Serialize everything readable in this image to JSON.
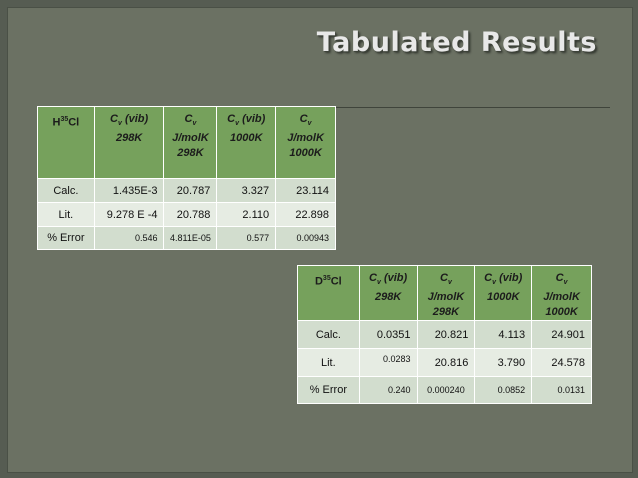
{
  "title": "Tabulated Results",
  "table_hcl": {
    "headers": [
      {
        "main": "H",
        "sup": "35",
        "tail": "Cl"
      },
      {
        "main": "C",
        "sub": "v",
        "l1": " (vib)",
        "l2": "298K",
        "l3": ""
      },
      {
        "main": "C",
        "sub": "v",
        "l1": "",
        "l2": "J/molK",
        "l3": "298K"
      },
      {
        "main": "C",
        "sub": "v",
        "l1": " (vib)",
        "l2": "1000K",
        "l3": ""
      },
      {
        "main": "C",
        "sub": "v",
        "l1": "",
        "l2": "J/molK",
        "l3": "1000K"
      }
    ],
    "rows": [
      {
        "label": "Calc.",
        "c1": "1.435E-3",
        "c2": "20.787",
        "c3": "3.327",
        "c4": "23.114"
      },
      {
        "label": "Lit.",
        "c1": "9.278 E -4",
        "c2": "20.788",
        "c3": "2.110",
        "c4": "22.898"
      },
      {
        "label": "% Error",
        "c1": "0.546",
        "c2": "4.811E-05",
        "c3": "0.577",
        "c4": "0.00943"
      }
    ]
  },
  "table_dcl": {
    "headers": [
      {
        "main": "D",
        "sup": "35",
        "tail": "Cl"
      },
      {
        "main": "C",
        "sub": "v",
        "l1": " (vib)",
        "l2": "298K",
        "l3": ""
      },
      {
        "main": "C",
        "sub": "v",
        "l1": "",
        "l2": "J/molK",
        "l3": "298K"
      },
      {
        "main": "C",
        "sub": "v",
        "l1": " (vib)",
        "l2": "1000K",
        "l3": ""
      },
      {
        "main": "C",
        "sub": "v",
        "l1": "",
        "l2": "J/molK",
        "l3": "1000K"
      }
    ],
    "rows": [
      {
        "label": "Calc.",
        "c1": "0.0351",
        "c2": "20.821",
        "c3": "4.113",
        "c4": "24.901"
      },
      {
        "label": "Lit.",
        "c1": "0.0283",
        "c2": "20.816",
        "c3": "3.790",
        "c4": "24.578"
      },
      {
        "label": "% Error",
        "c1": "0.240",
        "c2": "0.000240",
        "c3": "0.0852",
        "c4": "0.0131"
      }
    ]
  },
  "colors": {
    "background": "#565c52",
    "slide": "#6b7163",
    "header_green": "#76a15c",
    "row_light": "#d2ddce",
    "row_lighter": "#e6ece3"
  }
}
